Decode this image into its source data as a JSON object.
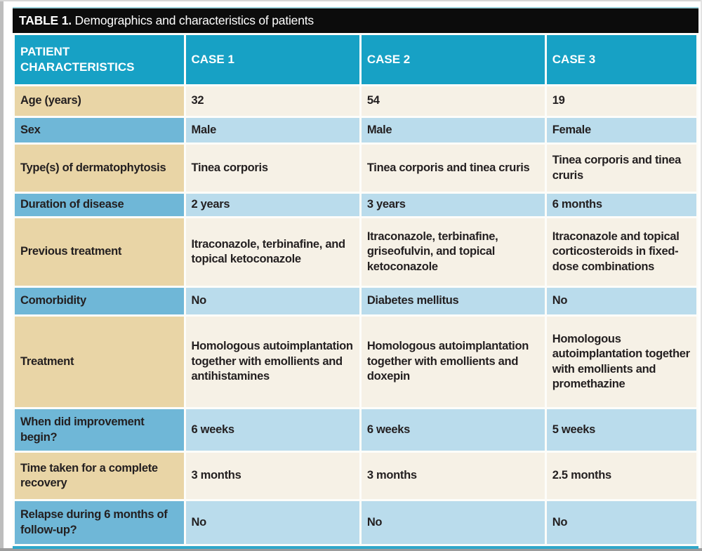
{
  "colors": {
    "header_teal": "#17a1c5",
    "label_tan": "#e9d5a6",
    "data_cream": "#f6f1e6",
    "label_blue": "#6fb7d7",
    "data_light_blue": "#badcec",
    "title_bar_black": "#0c0c0c",
    "text_dark": "#231f20",
    "bottom_strip_teal": "#2fa7ca"
  },
  "table": {
    "title_bold": "TABLE 1.",
    "title_rest": " Demographics and characteristics of patients",
    "columns": {
      "label": "PATIENT CHARACTERISTICS",
      "case1": "CASE 1",
      "case2": "CASE 2",
      "case3": "CASE 3"
    },
    "rows": [
      {
        "label": "Age (years)",
        "values": [
          "32",
          "54",
          "19"
        ]
      },
      {
        "label": "Sex",
        "values": [
          "Male",
          "Male",
          "Female"
        ]
      },
      {
        "label": "Type(s) of dermatophytosis",
        "values": [
          "Tinea corporis",
          "Tinea corporis and tinea cruris",
          "Tinea corporis and tinea cruris"
        ]
      },
      {
        "label": "Duration of disease",
        "values": [
          "2 years",
          "3 years",
          "6 months"
        ]
      },
      {
        "label": "Previous treatment",
        "values": [
          "Itraconazole, terbinafine, and topical ketoconazole",
          "Itraconazole, terbinafine, griseofulvin, and topical ketoconazole",
          "Itraconazole and topical corticosteroids in fixed-dose combinations"
        ]
      },
      {
        "label": "Comorbidity",
        "values": [
          "No",
          "Diabetes mellitus",
          "No"
        ]
      },
      {
        "label": "Treatment",
        "values": [
          "Homologous autoimplantation together with emollients and antihistamines",
          "Homologous autoimplantation together with emollients and doxepin",
          "Homologous autoimplantation together with emollients and promethazine"
        ]
      },
      {
        "label": "When did improvement begin?",
        "values": [
          "6 weeks",
          "6 weeks",
          "5 weeks"
        ]
      },
      {
        "label": "Time taken for a complete recovery",
        "values": [
          "3 months",
          "3 months",
          "2.5 months"
        ]
      },
      {
        "label": "Relapse during 6 months of follow-up?",
        "values": [
          "No",
          "No",
          "No"
        ]
      }
    ]
  }
}
